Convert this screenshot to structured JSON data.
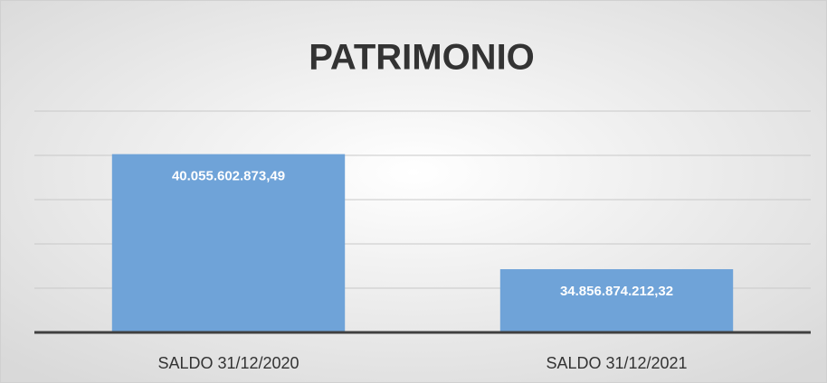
{
  "chart_data": {
    "type": "bar",
    "title": "PATRIMONIO",
    "categories": [
      "SALDO 31/12/2020",
      "SALDO 31/12/2021"
    ],
    "values": [
      40055602873.49,
      34856874212.32
    ],
    "value_labels": [
      "40.055.602.873,49",
      "34.856.874.212,32"
    ],
    "color": "#6fa3d8",
    "ylim": [
      32000000000,
      42000000000
    ],
    "yticks": [
      32000000000,
      34000000000,
      36000000000,
      38000000000,
      40000000000,
      42000000000
    ],
    "grid": true
  }
}
